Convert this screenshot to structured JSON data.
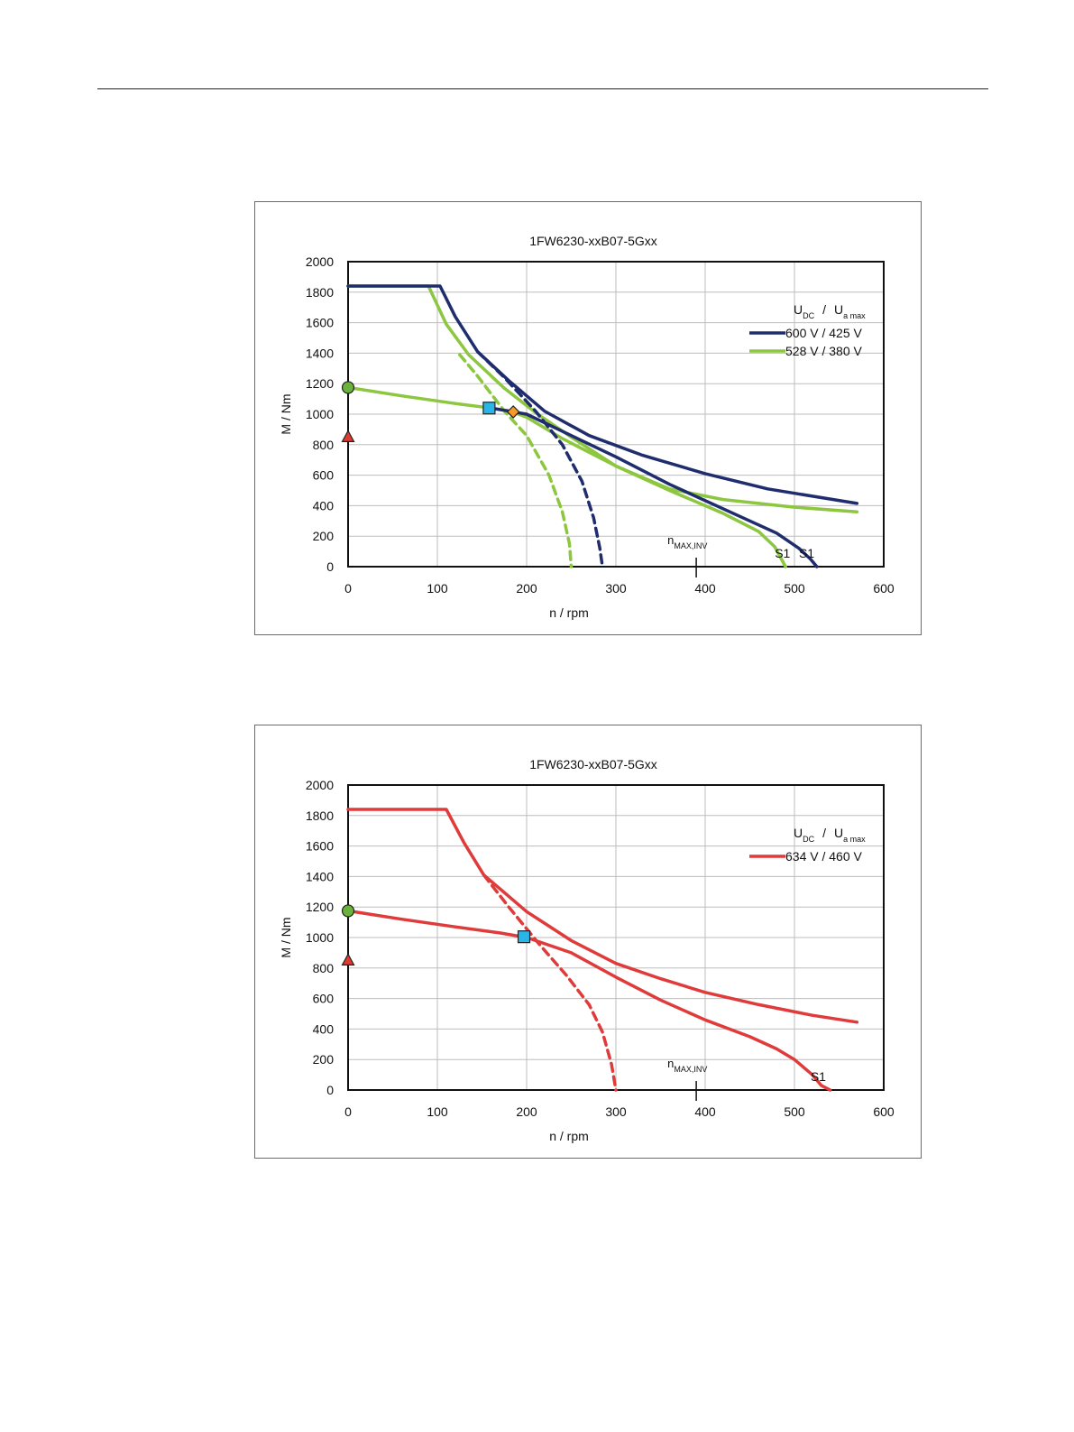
{
  "chart_data": [
    {
      "type": "line",
      "title": "1FW6230-xxB07-5Gxx",
      "xlabel": "n / rpm",
      "ylabel": "M / Nm",
      "xlim": [
        0,
        600
      ],
      "ylim": [
        0,
        2000
      ],
      "xticks": [
        "0",
        "100",
        "200",
        "300",
        "400",
        "500",
        "600"
      ],
      "yticks": [
        "0",
        "200",
        "400",
        "600",
        "800",
        "1000",
        "1200",
        "1400",
        "1600",
        "1800",
        "2000"
      ],
      "grid": true,
      "legend": {
        "position": "right",
        "header_main_1": "U",
        "header_sub_1": "DC",
        "header_sep": "/",
        "header_main_2": "U",
        "header_sub_2": "a max",
        "entries": [
          {
            "label": "600 V / 425 V",
            "color": "#1f2d6e"
          },
          {
            "label": "528 V / 380 V",
            "color": "#8dc63f"
          }
        ]
      },
      "annotations": {
        "n_max_inv": {
          "main": "n",
          "sub": "MAX,INV",
          "x": 390
        },
        "s1_labels": [
          {
            "text": "S1",
            "x": 478,
            "y": 60
          },
          {
            "text": "S1",
            "x": 505,
            "y": 60
          }
        ]
      },
      "series": [
        {
          "color": "#8dc63f",
          "dash": false,
          "points": [
            [
              0,
              1840
            ],
            [
              90,
              1840
            ],
            [
              110,
              1590
            ],
            [
              135,
              1390
            ],
            [
              175,
              1170
            ],
            [
              210,
              1010
            ],
            [
              250,
              850
            ],
            [
              300,
              660
            ],
            [
              360,
              510
            ],
            [
              420,
              440
            ],
            [
              500,
              390
            ],
            [
              570,
              360
            ]
          ]
        },
        {
          "color": "#8dc63f",
          "dash": false,
          "points": [
            [
              0,
              1175
            ],
            [
              60,
              1120
            ],
            [
              120,
              1070
            ],
            [
              160,
              1040
            ],
            [
              182,
              1020
            ],
            [
              200,
              980
            ],
            [
              240,
              840
            ],
            [
              300,
              660
            ],
            [
              360,
              500
            ],
            [
              420,
              350
            ],
            [
              460,
              230
            ],
            [
              478,
              130
            ],
            [
              490,
              0
            ]
          ]
        },
        {
          "color": "#8dc63f",
          "dash": true,
          "points": [
            [
              125,
              1390
            ],
            [
              145,
              1250
            ],
            [
              175,
              1020
            ],
            [
              200,
              860
            ],
            [
              225,
              600
            ],
            [
              240,
              360
            ],
            [
              248,
              150
            ],
            [
              250,
              0
            ]
          ]
        },
        {
          "color": "#1f2d6e",
          "dash": false,
          "points": [
            [
              0,
              1840
            ],
            [
              103,
              1840
            ],
            [
              120,
              1640
            ],
            [
              145,
              1410
            ],
            [
              180,
              1220
            ],
            [
              220,
              1020
            ],
            [
              270,
              860
            ],
            [
              330,
              730
            ],
            [
              400,
              610
            ],
            [
              470,
              510
            ],
            [
              570,
              415
            ]
          ]
        },
        {
          "color": "#1f2d6e",
          "dash": false,
          "points": [
            [
              160,
              1040
            ],
            [
              200,
              1000
            ],
            [
              250,
              860
            ],
            [
              300,
              720
            ],
            [
              360,
              540
            ],
            [
              420,
              380
            ],
            [
              480,
              220
            ],
            [
              505,
              120
            ],
            [
              518,
              50
            ],
            [
              525,
              0
            ]
          ]
        },
        {
          "color": "#1f2d6e",
          "dash": true,
          "points": [
            [
              145,
              1410
            ],
            [
              175,
              1240
            ],
            [
              210,
              1020
            ],
            [
              240,
              800
            ],
            [
              262,
              560
            ],
            [
              275,
              320
            ],
            [
              282,
              120
            ],
            [
              285,
              0
            ]
          ]
        }
      ],
      "markers": [
        {
          "shape": "circle",
          "x": 0,
          "y": 1175,
          "color": "#6ab23c"
        },
        {
          "shape": "triangle",
          "x": 0,
          "y": 850,
          "color": "#e03b2f"
        },
        {
          "shape": "square",
          "x": 158,
          "y": 1040,
          "color": "#29b5e8"
        },
        {
          "shape": "diamond",
          "x": 185,
          "y": 1015,
          "color": "#f39a2b"
        }
      ]
    },
    {
      "type": "line",
      "title": "1FW6230-xxB07-5Gxx",
      "xlabel": "n / rpm",
      "ylabel": "M / Nm",
      "xlim": [
        0,
        600
      ],
      "ylim": [
        0,
        2000
      ],
      "xticks": [
        "0",
        "100",
        "200",
        "300",
        "400",
        "500",
        "600"
      ],
      "yticks": [
        "0",
        "200",
        "400",
        "600",
        "800",
        "1000",
        "1200",
        "1400",
        "1600",
        "1800",
        "2000"
      ],
      "grid": true,
      "legend": {
        "position": "right",
        "header_main_1": "U",
        "header_sub_1": "DC",
        "header_sep": "/",
        "header_main_2": "U",
        "header_sub_2": "a max",
        "entries": [
          {
            "label": "634 V / 460 V",
            "color": "#e03b3b"
          }
        ]
      },
      "annotations": {
        "n_max_inv": {
          "main": "n",
          "sub": "MAX,INV",
          "x": 390
        },
        "s1_labels": [
          {
            "text": "S1",
            "x": 518,
            "y": 60
          }
        ]
      },
      "series": [
        {
          "color": "#e03b3b",
          "dash": false,
          "points": [
            [
              0,
              1840
            ],
            [
              110,
              1840
            ],
            [
              130,
              1620
            ],
            [
              152,
              1410
            ],
            [
              200,
              1170
            ],
            [
              250,
              980
            ],
            [
              300,
              830
            ],
            [
              350,
              730
            ],
            [
              400,
              640
            ],
            [
              460,
              560
            ],
            [
              520,
              490
            ],
            [
              570,
              445
            ]
          ]
        },
        {
          "color": "#e03b3b",
          "dash": false,
          "points": [
            [
              0,
              1175
            ],
            [
              60,
              1120
            ],
            [
              120,
              1070
            ],
            [
              170,
              1030
            ],
            [
              200,
              1000
            ],
            [
              250,
              900
            ],
            [
              300,
              740
            ],
            [
              350,
              590
            ],
            [
              400,
              460
            ],
            [
              450,
              350
            ],
            [
              480,
              270
            ],
            [
              500,
              200
            ],
            [
              520,
              100
            ],
            [
              530,
              30
            ],
            [
              540,
              0
            ]
          ]
        },
        {
          "color": "#e03b3b",
          "dash": true,
          "points": [
            [
              152,
              1410
            ],
            [
              180,
              1200
            ],
            [
              215,
              950
            ],
            [
              245,
              750
            ],
            [
              270,
              560
            ],
            [
              285,
              380
            ],
            [
              295,
              170
            ],
            [
              300,
              0
            ]
          ]
        }
      ],
      "markers": [
        {
          "shape": "circle",
          "x": 0,
          "y": 1175,
          "color": "#6ab23c"
        },
        {
          "shape": "triangle",
          "x": 0,
          "y": 850,
          "color": "#e03b2f"
        },
        {
          "shape": "square",
          "x": 197,
          "y": 1005,
          "color": "#29b5e8"
        }
      ]
    }
  ]
}
